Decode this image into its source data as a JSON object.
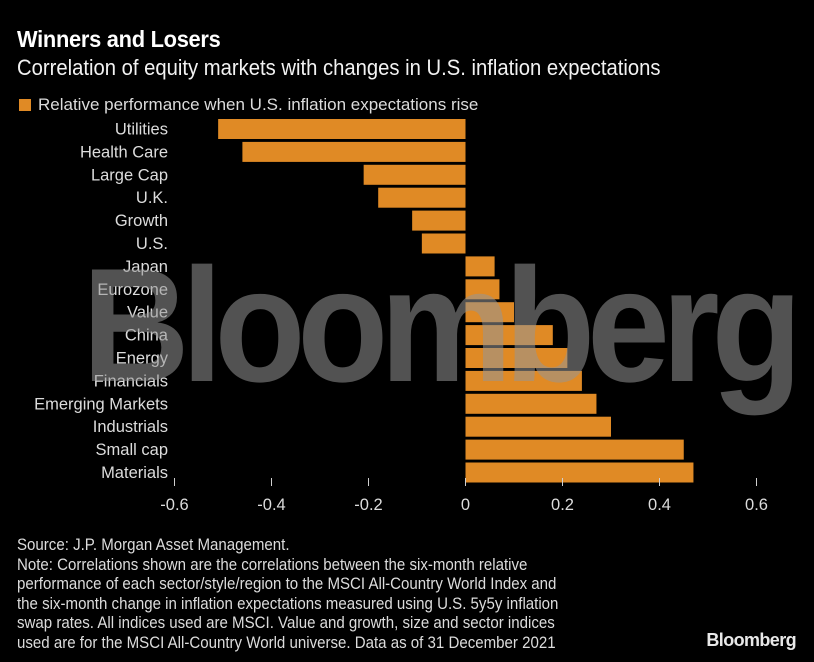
{
  "header": {
    "title": "Winners and Losers",
    "subtitle": "Correlation of equity markets with changes in U.S. inflation expectations"
  },
  "legend": {
    "label": "Relative performance when U.S. inflation expectations rise",
    "color": "#e08a25"
  },
  "watermark": "Bloomberg",
  "footer": {
    "source": "Source: J.P. Morgan Asset Management.",
    "note": "Note: Correlations shown are the correlations between the six-month relative\nperformance of each sector/style/region to the MSCI All-Country World Index and\nthe six-month change in inflation expectations measured using U.S. 5y5y inflation\nswap rates. All indices used are MSCI. Value and growth, size and sector indices\nused are for the MSCI All-Country World universe. Data as of 31 December 2021"
  },
  "brand": "Bloomberg",
  "chart_data": {
    "type": "bar",
    "orientation": "horizontal",
    "title": "Winners and Losers",
    "subtitle": "Correlation of equity markets with changes in U.S. inflation expectations",
    "xlabel": "",
    "ylabel": "",
    "legend": [
      "Relative performance when U.S. inflation expectations rise"
    ],
    "legend_position": "top-left",
    "grid": false,
    "xlim": [
      -0.6,
      0.6
    ],
    "xticks": [
      -0.6,
      -0.4,
      -0.2,
      0,
      0.2,
      0.4,
      0.6
    ],
    "xtick_labels": [
      "-0.6",
      "-0.4",
      "-0.2",
      "0",
      "0.2",
      "0.4",
      "0.6"
    ],
    "categories": [
      "Utilities",
      "Health Care",
      "Large Cap",
      "U.K.",
      "Growth",
      "U.S.",
      "Japan",
      "Eurozone",
      "Value",
      "China",
      "Energy",
      "Financials",
      "Emerging Markets",
      "Industrials",
      "Small cap",
      "Materials"
    ],
    "series": [
      {
        "name": "Relative performance when U.S. inflation expectations rise",
        "color": "#e08a25",
        "values": [
          -0.51,
          -0.46,
          -0.21,
          -0.18,
          -0.11,
          -0.09,
          0.06,
          0.07,
          0.1,
          0.18,
          0.21,
          0.24,
          0.27,
          0.3,
          0.45,
          0.47
        ]
      }
    ]
  }
}
